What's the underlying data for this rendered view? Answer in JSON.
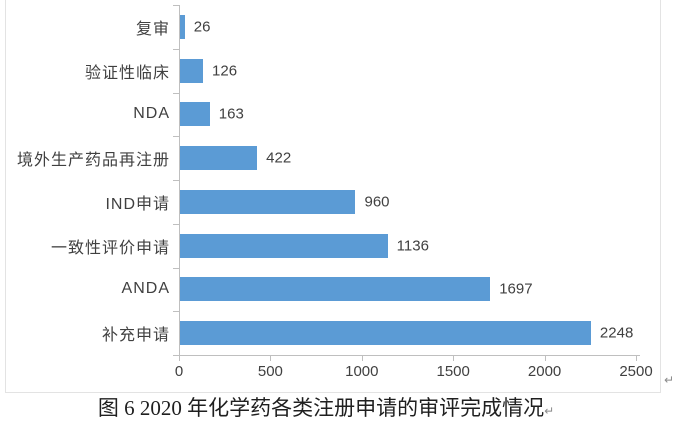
{
  "chart_data": {
    "type": "bar",
    "orientation": "horizontal",
    "categories": [
      "复审",
      "验证性临床",
      "NDA",
      "境外生产药品再注册",
      "IND申请",
      "一致性评价申请",
      "ANDA",
      "补充申请"
    ],
    "values": [
      26,
      126,
      163,
      422,
      960,
      1136,
      1697,
      2248
    ],
    "value_labels": [
      "26",
      "126",
      "163",
      "422",
      "960",
      "1136",
      "1697",
      "2248"
    ],
    "title": "",
    "xlabel": "",
    "ylabel": "",
    "xlim": [
      0,
      2500
    ],
    "x_ticks": [
      0,
      500,
      1000,
      1500,
      2000,
      2500
    ],
    "x_tick_labels": [
      "0",
      "500",
      "1000",
      "1500",
      "2000",
      "2500"
    ],
    "grid": false,
    "legend": false,
    "bar_color": "#5B9BD5",
    "axis_color": "#BFBFBF",
    "label_color": "#404040"
  },
  "caption": {
    "text": "图 6  2020 年化学药各类注册申请的审评完成情况"
  },
  "page": {
    "return_mark": "↵",
    "background": "#FFFFFF",
    "figure_border_color": "#E3E3E3"
  }
}
